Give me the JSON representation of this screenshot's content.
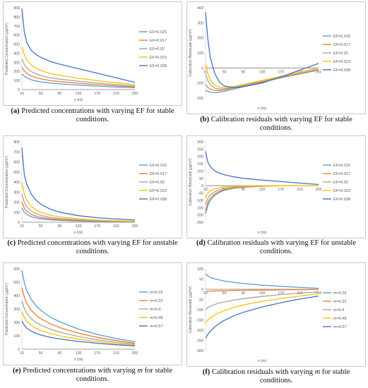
{
  "panels": [
    {
      "id": "a",
      "caption_label": "(a)",
      "caption_pre": " Predicted concentrations with varying EF for stable conditions.",
      "caption_var": "",
      "caption_post": "",
      "chart_data": {
        "type": "line",
        "ylabel": "Predicted Concentration (μg/m³)",
        "xlabel": "x (m)",
        "xlim": [
          10,
          250
        ],
        "ylim": [
          0,
          900
        ],
        "xticks": [
          10,
          50,
          90,
          130,
          170,
          210,
          250
        ],
        "yticks": [
          0,
          100,
          200,
          300,
          400,
          500,
          600,
          700,
          800,
          900
        ],
        "x": [
          10,
          15,
          20,
          30,
          40,
          50,
          70,
          90,
          130,
          170,
          210,
          250
        ],
        "series": [
          {
            "name": "EF=0.015",
            "color": "#5B9BD5",
            "values": [
              170,
              150,
              130,
              108,
              95,
              85,
              72,
              63,
              50,
              38,
              28,
              22
            ]
          },
          {
            "name": "EF=0.017",
            "color": "#ED7D31",
            "values": [
              245,
              205,
              180,
              150,
              132,
              118,
              100,
              88,
              70,
              55,
              42,
              30
            ]
          },
          {
            "name": "EF=0.02",
            "color": "#A5A5A5",
            "values": [
              335,
              280,
              240,
              198,
              172,
              155,
              130,
              115,
              92,
              72,
              55,
              40
            ]
          },
          {
            "name": "EF=0.023",
            "color": "#FFC000",
            "values": [
              470,
              390,
              330,
              270,
              235,
              210,
              178,
              158,
              125,
              98,
              75,
              55
            ]
          },
          {
            "name": "EF=0.038",
            "color": "#4472C4",
            "values": [
              890,
              640,
              520,
              430,
              385,
              355,
              310,
              280,
              230,
              180,
              130,
              80
            ]
          }
        ],
        "legend_position": "right"
      }
    },
    {
      "id": "b",
      "caption_label": "(b)",
      "caption_pre": " Calibration residuals with varying EF for stable conditions.",
      "caption_var": "",
      "caption_post": "",
      "chart_data": {
        "type": "line",
        "ylabel": "Calibration Residuals (μg/m³)",
        "xlabel": "x (m)",
        "xlim": [
          10,
          250
        ],
        "ylim": [
          -200,
          400
        ],
        "xticks": [
          10,
          50,
          90,
          130,
          170,
          210,
          250
        ],
        "yticks": [
          -200,
          -100,
          0,
          100,
          200,
          300,
          400
        ],
        "x": [
          10,
          15,
          20,
          30,
          40,
          50,
          70,
          90,
          130,
          170,
          210,
          250
        ],
        "series": [
          {
            "name": "EF=0.015",
            "color": "#5B9BD5",
            "values": [
              -150,
              -155,
              -160,
              -165,
              -160,
              -155,
              -140,
              -125,
              -95,
              -65,
              -40,
              -15
            ]
          },
          {
            "name": "EF=0.017",
            "color": "#ED7D31",
            "values": [
              -110,
              -130,
              -140,
              -150,
              -150,
              -145,
              -133,
              -120,
              -92,
              -63,
              -38,
              -12
            ]
          },
          {
            "name": "EF=0.02",
            "color": "#A5A5A5",
            "values": [
              -40,
              -85,
              -110,
              -135,
              -140,
              -138,
              -128,
              -115,
              -88,
              -60,
              -35,
              -8
            ]
          },
          {
            "name": "EF=0.023",
            "color": "#FFC000",
            "values": [
              30,
              -40,
              -80,
              -115,
              -128,
              -130,
              -123,
              -110,
              -83,
              -55,
              -28,
              0
            ]
          },
          {
            "name": "EF=0.038",
            "color": "#4472C4",
            "values": [
              370,
              190,
              70,
              -40,
              -95,
              -120,
              -130,
              -125,
              -100,
              -60,
              -15,
              30
            ]
          }
        ],
        "legend_position": "right"
      }
    },
    {
      "id": "c",
      "caption_label": "(c)",
      "caption_pre": " Predicted concentrations with varying EF for unstable conditions.",
      "caption_var": "",
      "caption_post": "",
      "chart_data": {
        "type": "line",
        "ylabel": "Predicted Concentration (μg/m³)",
        "xlabel": "x (m)",
        "xlim": [
          10,
          250
        ],
        "ylim": [
          0,
          800
        ],
        "xticks": [
          10,
          50,
          90,
          130,
          170,
          210,
          250
        ],
        "yticks": [
          0,
          100,
          200,
          300,
          400,
          500,
          600,
          700,
          800
        ],
        "x": [
          10,
          15,
          20,
          30,
          40,
          50,
          70,
          90,
          130,
          170,
          210,
          250
        ],
        "series": [
          {
            "name": "EF=0.015",
            "color": "#5B9BD5",
            "values": [
              140,
              100,
              78,
              55,
              42,
              34,
              24,
              18,
              11,
              7,
              5,
              3
            ]
          },
          {
            "name": "EF=0.017",
            "color": "#ED7D31",
            "values": [
              200,
              142,
              110,
              78,
              60,
              48,
              34,
              26,
              16,
              11,
              7,
              5
            ]
          },
          {
            "name": "EF=0.02",
            "color": "#A5A5A5",
            "values": [
              280,
              200,
              155,
              110,
              85,
              68,
              48,
              37,
              23,
              15,
              10,
              7
            ]
          },
          {
            "name": "EF=0.023",
            "color": "#FFC000",
            "values": [
              400,
              285,
              220,
              157,
              122,
              98,
              70,
              53,
              33,
              22,
              15,
              10
            ]
          },
          {
            "name": "EF=0.038",
            "color": "#4472C4",
            "values": [
              740,
              480,
              380,
              280,
              220,
              180,
              130,
              100,
              65,
              45,
              32,
              22
            ]
          }
        ],
        "legend_position": "right"
      }
    },
    {
      "id": "d",
      "caption_label": "(d)",
      "caption_pre": " Calibration residuals with varying EF for unstable conditions.",
      "caption_var": "",
      "caption_post": "",
      "chart_data": {
        "type": "line",
        "ylabel": "Calibration Residuals (μg/m³)",
        "xlabel": "x (m)",
        "xlim": [
          10,
          250
        ],
        "ylim": [
          -250,
          300
        ],
        "xticks": [
          10,
          50,
          90,
          130,
          170,
          210,
          250
        ],
        "yticks": [
          -250,
          -200,
          -150,
          -100,
          -50,
          0,
          50,
          100,
          150,
          200,
          250,
          300
        ],
        "x": [
          10,
          15,
          20,
          30,
          40,
          50,
          70,
          90,
          130,
          170,
          210,
          250
        ],
        "series": [
          {
            "name": "EF=0.015",
            "color": "#5B9BD5",
            "values": [
              -195,
              -135,
              -100,
              -65,
              -45,
              -32,
              -18,
              -11,
              -4,
              -1,
              0,
              0
            ]
          },
          {
            "name": "EF=0.017",
            "color": "#ED7D31",
            "values": [
              -170,
              -115,
              -85,
              -55,
              -38,
              -27,
              -15,
              -9,
              -3,
              -1,
              0,
              0
            ]
          },
          {
            "name": "EF=0.02",
            "color": "#A5A5A5",
            "values": [
              -130,
              -85,
              -63,
              -40,
              -27,
              -19,
              -10,
              -6,
              -2,
              0,
              0,
              0
            ]
          },
          {
            "name": "EF=0.023",
            "color": "#FFC000",
            "values": [
              -80,
              -50,
              -35,
              -22,
              -14,
              -9,
              -4,
              -2,
              0,
              0,
              0,
              0
            ]
          },
          {
            "name": "EF=0.038",
            "color": "#4472C4",
            "values": [
              235,
              160,
              130,
              100,
              85,
              75,
              60,
              50,
              38,
              28,
              18,
              8
            ]
          }
        ],
        "legend_position": "right"
      }
    },
    {
      "id": "e",
      "caption_label": "(e)",
      "caption_pre": " Predicted concentrations with varying ",
      "caption_var": "m",
      "caption_post": " for stable conditions.",
      "chart_data": {
        "type": "line",
        "ylabel": "Predicted Concentration (μg/m³)",
        "xlabel": "x (m)",
        "xlim": [
          10,
          250
        ],
        "ylim": [
          0,
          600
        ],
        "xticks": [
          10,
          50,
          90,
          130,
          170,
          210,
          250
        ],
        "yticks": [
          0,
          100,
          200,
          300,
          400,
          500,
          600
        ],
        "x": [
          10,
          15,
          20,
          30,
          40,
          50,
          70,
          90,
          130,
          170,
          210,
          250
        ],
        "series": [
          {
            "name": "m=0.25",
            "color": "#5B9BD5",
            "values": [
              590,
              500,
              440,
              370,
              325,
              290,
              240,
              205,
              150,
              110,
              80,
              55
            ]
          },
          {
            "name": "m=0.32",
            "color": "#ED7D31",
            "values": [
              460,
              390,
              345,
              290,
              255,
              228,
              190,
              162,
              120,
              88,
              65,
              45
            ]
          },
          {
            "name": "m=0.4",
            "color": "#A5A5A5",
            "values": [
              360,
              305,
              270,
              228,
              200,
              180,
              150,
              128,
              95,
              70,
              52,
              38
            ]
          },
          {
            "name": "m=0.48",
            "color": "#FFC000",
            "values": [
              280,
              238,
              210,
              178,
              156,
              140,
              117,
              100,
              75,
              56,
              42,
              31
            ]
          },
          {
            "name": "m=0.57",
            "color": "#4472C4",
            "values": [
              210,
              180,
              158,
              134,
              118,
              106,
              89,
              77,
              58,
              44,
              33,
              25
            ]
          }
        ],
        "legend_position": "right"
      }
    },
    {
      "id": "f",
      "caption_label": "(f)",
      "caption_pre": " Calibration residuals with varying ",
      "caption_var": "m",
      "caption_post": " for stable conditions.",
      "chart_data": {
        "type": "line",
        "ylabel": "Calibration Residuals (μg/m³)",
        "xlabel": "x (m)",
        "xlim": [
          10,
          250
        ],
        "ylim": [
          -300,
          100
        ],
        "xticks": [
          10,
          50,
          90,
          130,
          170,
          210,
          250
        ],
        "yticks": [
          -300,
          -250,
          -200,
          -150,
          -100,
          -50,
          0,
          50,
          100
        ],
        "x": [
          10,
          15,
          20,
          30,
          40,
          50,
          70,
          90,
          130,
          170,
          210,
          250
        ],
        "series": [
          {
            "name": "m=0.25",
            "color": "#5B9BD5",
            "values": [
              75,
              65,
              58,
              50,
              45,
              40,
              33,
              28,
              20,
              14,
              9,
              5
            ]
          },
          {
            "name": "m=0.32",
            "color": "#ED7D31",
            "values": [
              -10,
              -10,
              -9,
              -8,
              -8,
              -7,
              -6,
              -5,
              -4,
              -3,
              -2,
              -1
            ]
          },
          {
            "name": "m=0.4",
            "color": "#A5A5A5",
            "values": [
              -100,
              -90,
              -83,
              -74,
              -67,
              -62,
              -53,
              -46,
              -35,
              -26,
              -19,
              -13
            ]
          },
          {
            "name": "m=0.48",
            "color": "#FFC000",
            "values": [
              -165,
              -150,
              -140,
              -125,
              -113,
              -104,
              -89,
              -77,
              -59,
              -45,
              -33,
              -22
            ]
          },
          {
            "name": "m=0.57",
            "color": "#4472C4",
            "values": [
              -240,
              -220,
              -205,
              -183,
              -166,
              -152,
              -130,
              -113,
              -87,
              -66,
              -48,
              -33
            ]
          }
        ],
        "legend_position": "right"
      }
    }
  ]
}
